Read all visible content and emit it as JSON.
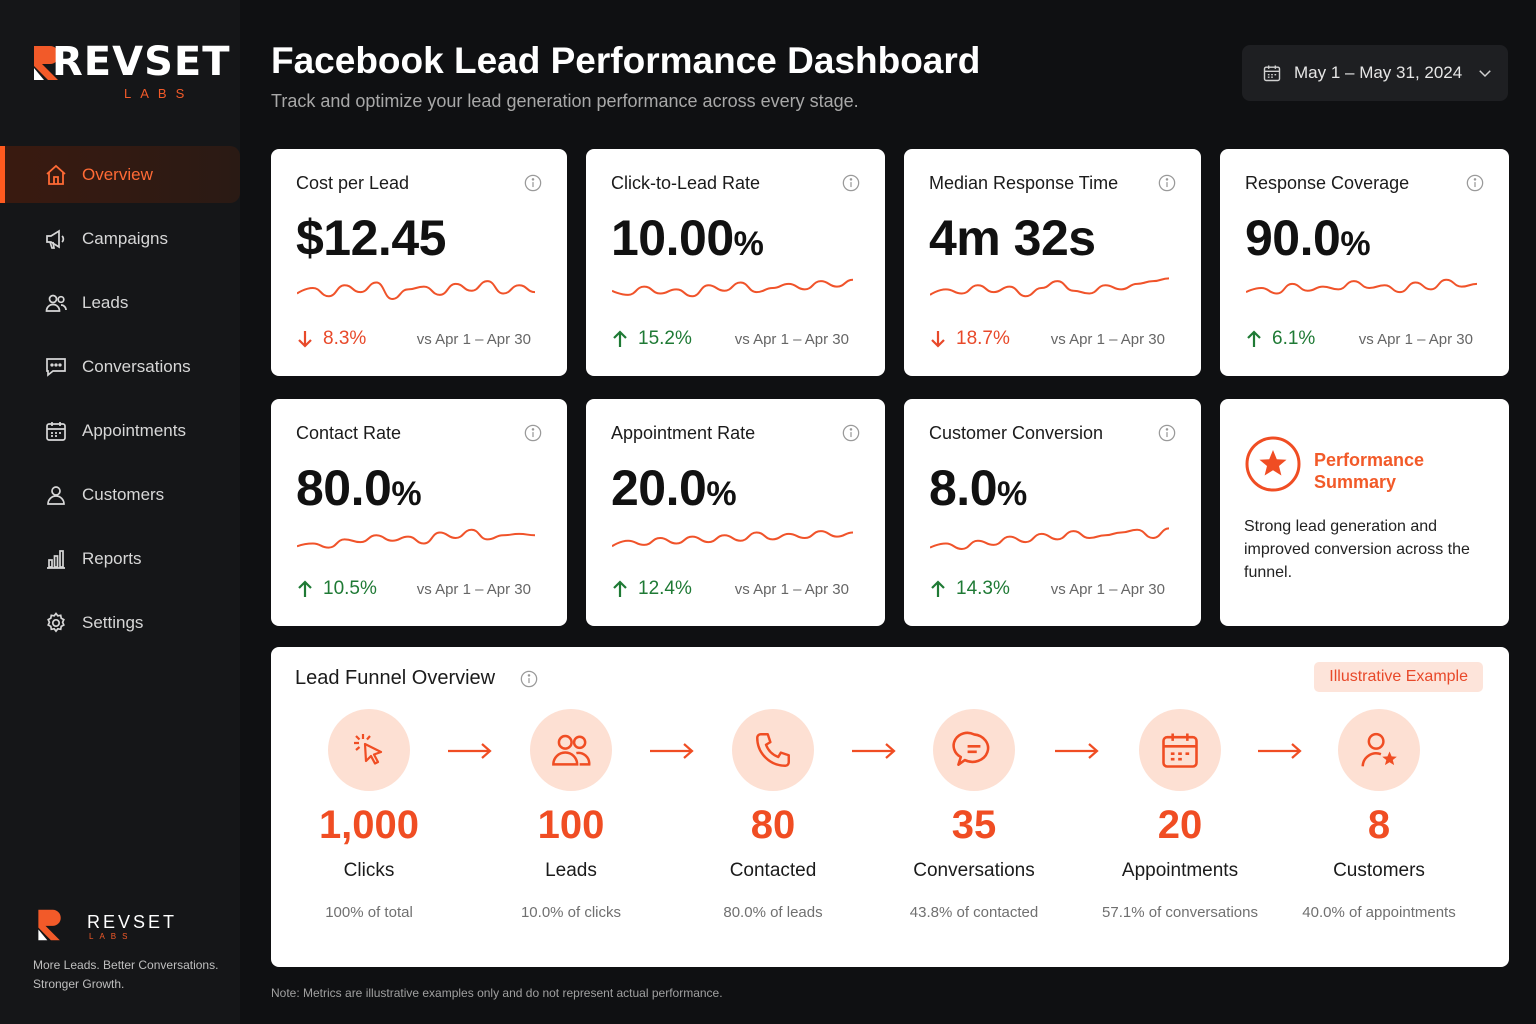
{
  "brand": {
    "name": "REVSET",
    "sub": "LABS",
    "tagline": "More Leads. Better Conversations. Stronger Growth.",
    "accent": "#f25a29"
  },
  "sidebar": {
    "items": [
      {
        "label": "Overview",
        "icon": "home-icon",
        "active": true
      },
      {
        "label": "Campaigns",
        "icon": "megaphone-icon"
      },
      {
        "label": "Leads",
        "icon": "users-icon"
      },
      {
        "label": "Conversations",
        "icon": "chat-icon"
      },
      {
        "label": "Appointments",
        "icon": "calendar-icon"
      },
      {
        "label": "Customers",
        "icon": "user-icon"
      },
      {
        "label": "Reports",
        "icon": "bar-chart-icon"
      },
      {
        "label": "Settings",
        "icon": "gear-icon"
      }
    ]
  },
  "header": {
    "title": "Facebook Lead Performance Dashboard",
    "subtitle": "Track and optimize your lead generation performance across every stage.",
    "date_range": "May 1 – May 31, 2024"
  },
  "kpis": [
    {
      "title": "Cost per Lead",
      "value": "$12.45",
      "unit": "",
      "delta": "8.3%",
      "direction": "down",
      "compare": "vs Apr 1 – Apr 30"
    },
    {
      "title": "Click-to-Lead Rate",
      "value": "10.00",
      "unit": "%",
      "delta": "15.2%",
      "direction": "up",
      "compare": "vs Apr 1 – Apr 30"
    },
    {
      "title": "Median Response Time",
      "value": "4m 32s",
      "unit": "",
      "delta": "18.7%",
      "direction": "down",
      "compare": "vs Apr 1 – Apr 30"
    },
    {
      "title": "Response Coverage",
      "value": "90.0",
      "unit": "%",
      "delta": "6.1%",
      "direction": "up",
      "compare": "vs Apr 1 – Apr 30"
    },
    {
      "title": "Contact Rate",
      "value": "80.0",
      "unit": "%",
      "delta": "10.5%",
      "direction": "up",
      "compare": "vs Apr 1 – Apr 30"
    },
    {
      "title": "Appointment Rate",
      "value": "20.0",
      "unit": "%",
      "delta": "12.4%",
      "direction": "up",
      "compare": "vs Apr 1 – Apr 30"
    },
    {
      "title": "Customer Conversion",
      "value": "8.0",
      "unit": "%",
      "delta": "14.3%",
      "direction": "up",
      "compare": "vs Apr 1 – Apr 30"
    }
  ],
  "summary": {
    "title": "Performance Summary",
    "text": "Strong lead generation and improved conversion across the funnel."
  },
  "funnel": {
    "title": "Lead Funnel Overview",
    "badge": "Illustrative Example",
    "stages": [
      {
        "value": "1,000",
        "label": "Clicks",
        "pct": "100% of total",
        "icon": "cursor-click-icon"
      },
      {
        "value": "100",
        "label": "Leads",
        "pct": "10.0% of clicks",
        "icon": "users-icon"
      },
      {
        "value": "80",
        "label": "Contacted",
        "pct": "80.0% of leads",
        "icon": "phone-icon"
      },
      {
        "value": "35",
        "label": "Conversations",
        "pct": "43.8% of contacted",
        "icon": "chat-icon"
      },
      {
        "value": "20",
        "label": "Appointments",
        "pct": "57.1% of conversations",
        "icon": "calendar-icon"
      },
      {
        "value": "8",
        "label": "Customers",
        "pct": "40.0% of appointments",
        "icon": "user-star-icon"
      }
    ]
  },
  "note": "Note: Metrics are illustrative examples only and do not represent actual performance.",
  "colors": {
    "accent": "#f25a29",
    "up": "#1f7a35",
    "down": "#e8492a",
    "spark": "#f0532a"
  }
}
